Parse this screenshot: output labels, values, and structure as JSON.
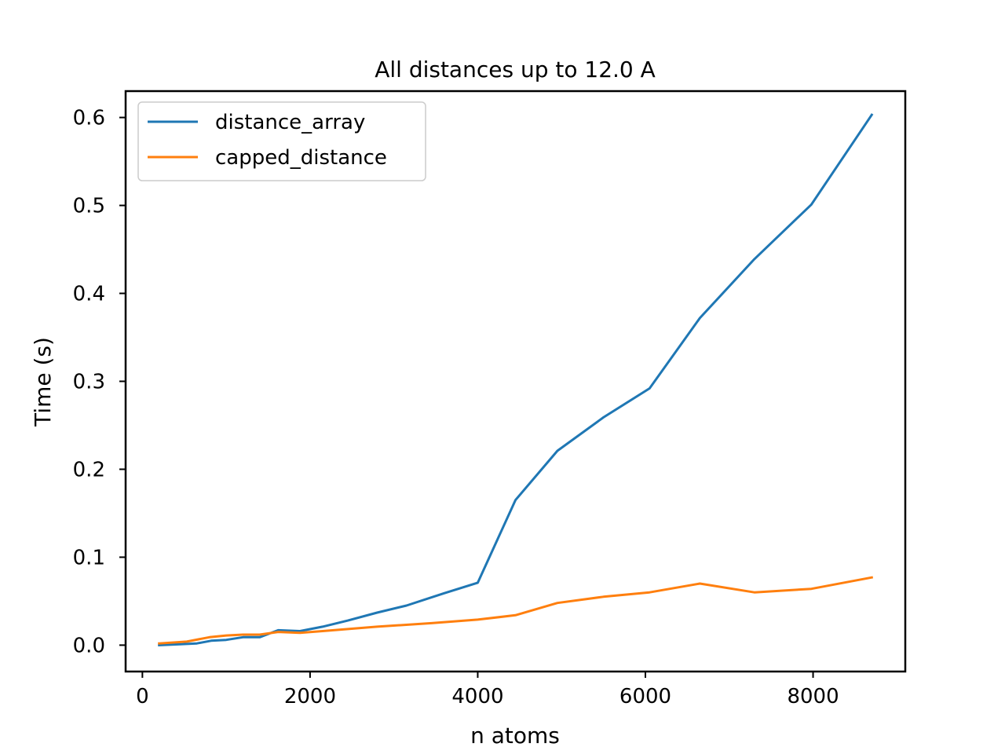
{
  "chart_data": {
    "type": "line",
    "title": "All distances up to 12.0 A",
    "xlabel": "n atoms",
    "ylabel": "Time (s)",
    "xlim": [
      -200,
      9100
    ],
    "ylim": [
      -0.03,
      0.63
    ],
    "xticks": [
      0,
      2000,
      4000,
      6000,
      8000
    ],
    "xtick_labels": [
      "0",
      "2000",
      "4000",
      "6000",
      "8000"
    ],
    "yticks": [
      0.0,
      0.1,
      0.2,
      0.3,
      0.4,
      0.5,
      0.6
    ],
    "ytick_labels": [
      "0.0",
      "0.1",
      "0.2",
      "0.3",
      "0.4",
      "0.5",
      "0.6"
    ],
    "grid": false,
    "legend_position": "upper-left",
    "series": [
      {
        "name": "distance_array",
        "color": "#1f77b4",
        "points": [
          [
            200,
            0.0
          ],
          [
            450,
            0.001
          ],
          [
            650,
            0.002
          ],
          [
            820,
            0.005
          ],
          [
            1000,
            0.006
          ],
          [
            1200,
            0.009
          ],
          [
            1400,
            0.009
          ],
          [
            1620,
            0.017
          ],
          [
            1880,
            0.016
          ],
          [
            2150,
            0.021
          ],
          [
            2450,
            0.028
          ],
          [
            2800,
            0.037
          ],
          [
            3150,
            0.045
          ],
          [
            3600,
            0.059
          ],
          [
            4000,
            0.071
          ],
          [
            4450,
            0.165
          ],
          [
            4950,
            0.221
          ],
          [
            5500,
            0.259
          ],
          [
            6050,
            0.292
          ],
          [
            6650,
            0.372
          ],
          [
            7300,
            0.439
          ],
          [
            7980,
            0.501
          ],
          [
            8700,
            0.603
          ]
        ]
      },
      {
        "name": "capped_distance",
        "color": "#ff7f0e",
        "points": [
          [
            200,
            0.002
          ],
          [
            530,
            0.004
          ],
          [
            800,
            0.009
          ],
          [
            1000,
            0.011
          ],
          [
            1200,
            0.012
          ],
          [
            1400,
            0.012
          ],
          [
            1620,
            0.015
          ],
          [
            1880,
            0.014
          ],
          [
            2150,
            0.016
          ],
          [
            2800,
            0.021
          ],
          [
            3450,
            0.025
          ],
          [
            4000,
            0.029
          ],
          [
            4450,
            0.034
          ],
          [
            4950,
            0.048
          ],
          [
            5500,
            0.055
          ],
          [
            6050,
            0.06
          ],
          [
            6650,
            0.07
          ],
          [
            7300,
            0.06
          ],
          [
            7980,
            0.064
          ],
          [
            8700,
            0.077
          ]
        ]
      }
    ]
  }
}
